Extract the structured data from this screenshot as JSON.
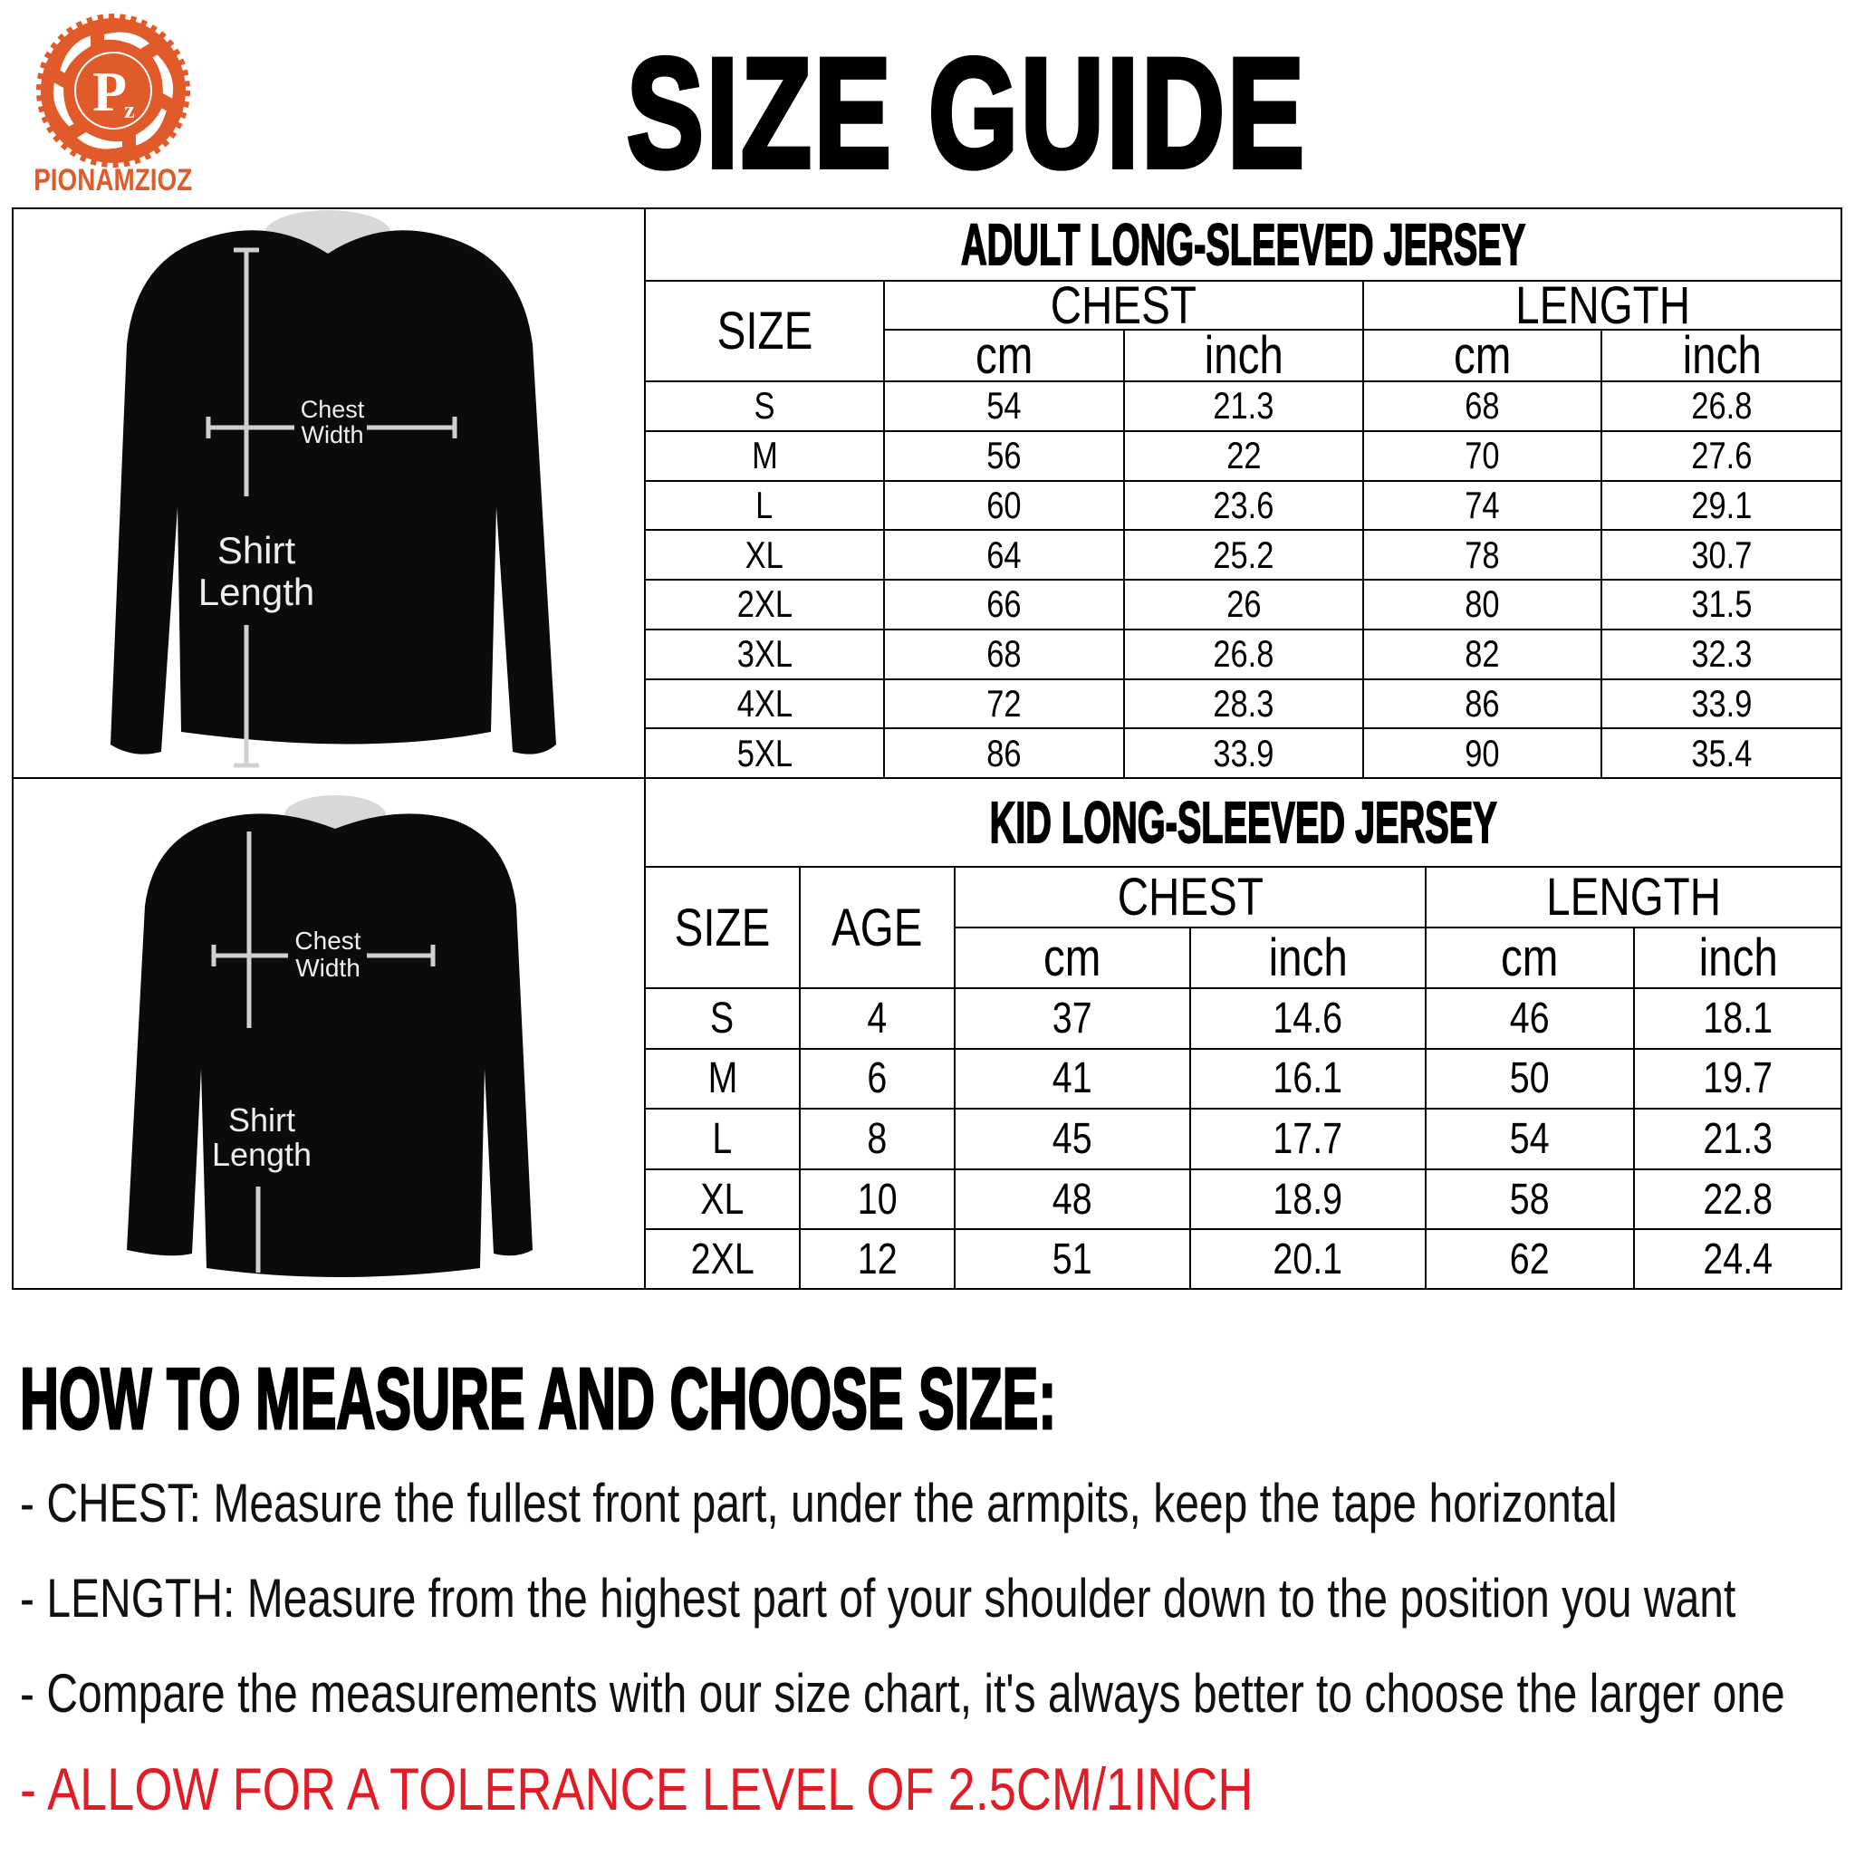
{
  "brand": {
    "name": "PIONAMZIOZ",
    "logo_letters": "Pz",
    "color": "#e05a2a"
  },
  "title": "SIZE GUIDE",
  "illustrations": {
    "adult": {
      "chest_label_1": "Chest",
      "chest_label_2": "Width",
      "length_label_1": "Shirt",
      "length_label_2": "Length"
    },
    "kid": {
      "chest_label_1": "Chest",
      "chest_label_2": "Width",
      "length_label_1": "Shirt",
      "length_label_2": "Length"
    }
  },
  "adult_table": {
    "title": "ADULT LONG-SLEEVED JERSEY",
    "headers": {
      "size": "SIZE",
      "chest": "CHEST",
      "length": "LENGTH",
      "cm": "cm",
      "inch": "inch"
    },
    "rows": [
      [
        "S",
        "54",
        "21.3",
        "68",
        "26.8"
      ],
      [
        "M",
        "56",
        "22",
        "70",
        "27.6"
      ],
      [
        "L",
        "60",
        "23.6",
        "74",
        "29.1"
      ],
      [
        "XL",
        "64",
        "25.2",
        "78",
        "30.7"
      ],
      [
        "2XL",
        "66",
        "26",
        "80",
        "31.5"
      ],
      [
        "3XL",
        "68",
        "26.8",
        "82",
        "32.3"
      ],
      [
        "4XL",
        "72",
        "28.3",
        "86",
        "33.9"
      ],
      [
        "5XL",
        "86",
        "33.9",
        "90",
        "35.4"
      ]
    ]
  },
  "kid_table": {
    "title": "KID LONG-SLEEVED JERSEY",
    "headers": {
      "size": "SIZE",
      "age": "AGE",
      "chest": "CHEST",
      "length": "LENGTH",
      "cm": "cm",
      "inch": "inch"
    },
    "rows": [
      [
        "S",
        "4",
        "37",
        "14.6",
        "46",
        "18.1"
      ],
      [
        "M",
        "6",
        "41",
        "16.1",
        "50",
        "19.7"
      ],
      [
        "L",
        "8",
        "45",
        "17.7",
        "54",
        "21.3"
      ],
      [
        "XL",
        "10",
        "48",
        "18.9",
        "58",
        "22.8"
      ],
      [
        "2XL",
        "12",
        "51",
        "20.1",
        "62",
        "24.4"
      ]
    ]
  },
  "instructions": {
    "heading": "HOW TO MEASURE AND CHOOSE SIZE:",
    "chest_lead": "- CHEST:",
    "chest_text": " Measure the fullest front part, under the armpits, keep the tape horizontal",
    "length_lead": "- LENGTH:",
    "length_text": " Measure from the highest part of your shoulder down to the position you want",
    "compare": "- Compare the measurements with our size chart, it's always better to choose the larger one",
    "tolerance": "- ALLOW FOR A TOLERANCE LEVEL OF 2.5CM/1INCH",
    "tolerance_color": "#e21c24"
  }
}
